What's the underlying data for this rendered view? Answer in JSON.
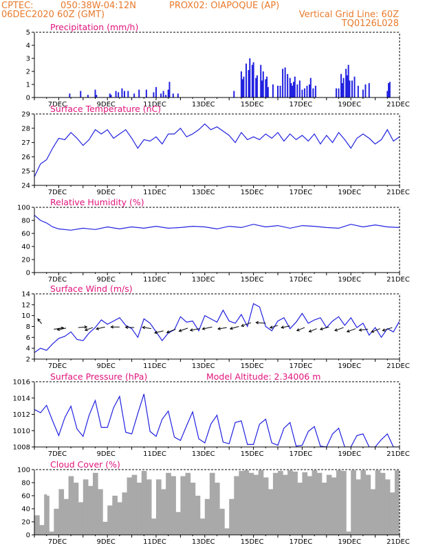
{
  "header": {
    "line1_left": "CPTEC:",
    "line1_coord": "050:38W-04:12N",
    "line1_right": "PROX02: OIAPOQUE (AP)",
    "line2_left": "06DEC2020 60Z (GMT)",
    "line2_right": "Vertical Grid Line: 60Z",
    "line3_right": "TQ0126L028"
  },
  "colors": {
    "header": "#e87a2c",
    "title": "#e0147c",
    "line": "#2020e0",
    "bar": "#2020e0",
    "cloud": "#a9a9a9",
    "wind": "#000000"
  },
  "x_ticks": [
    "7DEC",
    "9DEC",
    "11DEC",
    "13DEC",
    "15DEC",
    "17DEC",
    "19DEC",
    "21DEC"
  ],
  "chart_data": [
    {
      "id": "precip",
      "type": "bar",
      "title": "Precipitation (mm/h)",
      "ylim": [
        0,
        5
      ],
      "yticks": [
        "0",
        "1",
        "2",
        "3",
        "4",
        "5"
      ],
      "x": [
        7.45,
        7.9,
        8.2,
        8.5,
        8.55,
        9.1,
        9.15,
        9.35,
        9.45,
        9.6,
        9.7,
        9.85,
        10.1,
        10.3,
        10.6,
        10.9,
        11.0,
        11.2,
        11.3,
        11.4,
        11.5,
        11.55,
        11.7,
        11.9,
        14.2,
        14.5,
        14.55,
        14.6,
        14.7,
        14.8,
        14.85,
        14.95,
        15.0,
        15.1,
        15.15,
        15.3,
        15.35,
        15.4,
        15.5,
        15.55,
        15.6,
        15.8,
        16.0,
        16.1,
        16.2,
        16.3,
        16.4,
        16.5,
        16.55,
        16.6,
        16.65,
        16.7,
        16.8,
        16.9,
        17.0,
        17.1,
        17.2,
        17.3,
        17.35,
        17.45,
        17.55,
        18.4,
        18.5,
        18.6,
        18.65,
        18.7,
        18.8,
        18.85,
        18.9,
        18.95,
        19.05,
        19.15,
        19.3,
        19.5,
        19.6,
        19.75,
        20.5,
        20.55,
        20.6
      ],
      "values": [
        0.3,
        0.5,
        0.2,
        0.6,
        0.2,
        0.3,
        0.2,
        0.5,
        0.4,
        0.7,
        0.5,
        0.5,
        0.3,
        0.6,
        0.6,
        0.4,
        0.8,
        0.3,
        0.5,
        0.2,
        0.6,
        1.2,
        0.3,
        0.3,
        0.5,
        2.0,
        1.4,
        1.6,
        2.6,
        2.1,
        3.0,
        2.5,
        2.7,
        1.5,
        1.7,
        2.5,
        1.3,
        2.0,
        1.4,
        1.6,
        0.8,
        1.0,
        0.9,
        0.9,
        2.2,
        2.3,
        1.8,
        1.5,
        1.1,
        0.9,
        1.2,
        1.6,
        1.0,
        1.3,
        0.6,
        0.7,
        0.9,
        1.0,
        1.5,
        0.7,
        0.9,
        0.7,
        0.7,
        1.8,
        1.1,
        1.5,
        2.2,
        1.7,
        2.5,
        1.3,
        1.3,
        1.6,
        0.9,
        0.6,
        1.0,
        1.1,
        0.5,
        1.1,
        1.2
      ]
    },
    {
      "id": "temp",
      "type": "line",
      "title": "Surface Temperature (nC)",
      "ylim": [
        24,
        29
      ],
      "yticks": [
        "24",
        "25",
        "26",
        "27",
        "28",
        "29"
      ],
      "x": [
        6.0,
        6.25,
        6.5,
        6.75,
        7.0,
        7.25,
        7.5,
        7.75,
        8.0,
        8.25,
        8.5,
        8.75,
        9.0,
        9.25,
        9.5,
        9.75,
        10.0,
        10.25,
        10.5,
        10.75,
        11.0,
        11.25,
        11.5,
        11.75,
        12.0,
        12.25,
        12.5,
        12.75,
        13.0,
        13.25,
        13.5,
        13.75,
        14.0,
        14.25,
        14.5,
        14.75,
        15.0,
        15.25,
        15.5,
        15.75,
        16.0,
        16.25,
        16.5,
        16.75,
        17.0,
        17.25,
        17.5,
        17.75,
        18.0,
        18.25,
        18.5,
        18.75,
        19.0,
        19.25,
        19.5,
        19.75,
        20.0,
        20.25,
        20.5,
        20.75,
        21.0
      ],
      "values": [
        24.6,
        25.5,
        25.8,
        26.6,
        27.3,
        27.2,
        27.7,
        27.3,
        26.8,
        27.2,
        27.9,
        27.6,
        27.9,
        27.3,
        27.6,
        27.9,
        27.3,
        26.6,
        27.2,
        27.1,
        27.4,
        26.9,
        27.6,
        27.6,
        28.0,
        27.4,
        27.6,
        27.9,
        28.3,
        27.9,
        28.1,
        27.8,
        27.5,
        27.0,
        27.7,
        27.2,
        27.4,
        27.2,
        27.6,
        27.3,
        27.7,
        27.1,
        27.6,
        27.2,
        27.5,
        27.1,
        27.6,
        26.9,
        27.5,
        27.0,
        27.7,
        27.2,
        26.6,
        27.3,
        27.6,
        27.3,
        26.9,
        27.2,
        27.9,
        27.1,
        27.4
      ]
    },
    {
      "id": "rh",
      "type": "line",
      "title": "Relative Humidity (%)",
      "ylim": [
        0,
        100
      ],
      "yticks": [
        "0",
        "20",
        "40",
        "60",
        "80",
        "100"
      ],
      "x": [
        6.0,
        6.25,
        6.5,
        6.75,
        7.0,
        7.5,
        8.0,
        8.5,
        9.0,
        9.5,
        10.0,
        10.5,
        11.0,
        11.5,
        12.0,
        12.5,
        13.0,
        13.5,
        14.0,
        14.5,
        15.0,
        15.5,
        16.0,
        16.5,
        17.0,
        17.5,
        18.0,
        18.5,
        19.0,
        19.5,
        20.0,
        20.5,
        21.0
      ],
      "values": [
        88,
        80,
        76,
        70,
        67,
        65,
        68,
        66,
        70,
        67,
        70,
        68,
        71,
        68,
        69,
        71,
        70,
        67,
        71,
        69,
        74,
        70,
        72,
        68,
        72,
        71,
        69,
        68,
        74,
        70,
        73,
        70,
        69
      ]
    },
    {
      "id": "wind",
      "type": "line",
      "title": "Surface Wind (m/s)",
      "ylim": [
        2,
        14
      ],
      "yticks": [
        "2",
        "4",
        "6",
        "8",
        "10",
        "12",
        "14"
      ],
      "x": [
        6.0,
        6.25,
        6.5,
        6.75,
        7.0,
        7.25,
        7.5,
        7.75,
        8.0,
        8.25,
        8.5,
        8.75,
        9.0,
        9.25,
        9.5,
        9.75,
        10.0,
        10.25,
        10.5,
        10.75,
        11.0,
        11.25,
        11.5,
        11.75,
        12.0,
        12.25,
        12.5,
        12.75,
        13.0,
        13.25,
        13.5,
        13.75,
        14.0,
        14.25,
        14.5,
        14.75,
        15.0,
        15.25,
        15.5,
        15.75,
        16.0,
        16.25,
        16.5,
        16.75,
        17.0,
        17.25,
        17.5,
        17.75,
        18.0,
        18.25,
        18.5,
        18.75,
        19.0,
        19.25,
        19.5,
        19.75,
        20.0,
        20.25,
        20.5,
        20.75,
        21.0
      ],
      "values": [
        3.2,
        4.0,
        3.6,
        4.8,
        5.8,
        6.2,
        7.0,
        5.6,
        5.4,
        6.8,
        7.8,
        9.2,
        8.4,
        9.0,
        9.6,
        8.2,
        7.6,
        6.0,
        9.4,
        8.6,
        7.0,
        5.4,
        6.8,
        7.4,
        9.8,
        8.8,
        9.0,
        7.2,
        10.0,
        9.4,
        8.8,
        11.0,
        9.0,
        8.6,
        10.2,
        8.0,
        12.2,
        11.6,
        8.0,
        7.2,
        9.0,
        9.6,
        7.6,
        8.8,
        10.4,
        8.6,
        9.2,
        9.6,
        7.8,
        9.0,
        9.8,
        8.2,
        9.6,
        7.8,
        8.6,
        6.4,
        7.8,
        6.0,
        7.6,
        7.0,
        9.0
      ],
      "arrows": [
        {
          "x": 6.3,
          "y": 8.5,
          "dx": -0.4,
          "dy": 1.4
        },
        {
          "x": 6.8,
          "y": 7.5,
          "dx": 1.0,
          "dy": 0.4
        },
        {
          "x": 7.3,
          "y": 7.7,
          "dx": -0.9,
          "dy": -0.5
        },
        {
          "x": 7.8,
          "y": 7.8,
          "dx": 0.9,
          "dy": 0.2
        },
        {
          "x": 8.4,
          "y": 7.8,
          "dx": -0.8,
          "dy": -0.8
        },
        {
          "x": 8.9,
          "y": 7.9,
          "dx": -0.9,
          "dy": -0.6
        },
        {
          "x": 9.5,
          "y": 7.9,
          "dx": -0.9,
          "dy": 0.0
        },
        {
          "x": 10.1,
          "y": 7.8,
          "dx": -0.9,
          "dy": 0.1
        },
        {
          "x": 10.8,
          "y": 7.6,
          "dx": -0.9,
          "dy": 0.4
        },
        {
          "x": 11.3,
          "y": 7.2,
          "dx": -0.9,
          "dy": -0.6
        },
        {
          "x": 11.8,
          "y": 7.5,
          "dx": -0.9,
          "dy": -1.0
        },
        {
          "x": 12.3,
          "y": 7.7,
          "dx": -0.9,
          "dy": -0.9
        },
        {
          "x": 12.8,
          "y": 7.6,
          "dx": -1.0,
          "dy": -0.5
        },
        {
          "x": 13.3,
          "y": 7.9,
          "dx": -1.0,
          "dy": -0.6
        },
        {
          "x": 13.9,
          "y": 7.8,
          "dx": -0.9,
          "dy": -0.4
        },
        {
          "x": 14.4,
          "y": 8.0,
          "dx": -0.9,
          "dy": -0.7
        },
        {
          "x": 14.9,
          "y": 8.7,
          "dx": -1.0,
          "dy": -1.0
        },
        {
          "x": 15.5,
          "y": 8.6,
          "dx": -1.0,
          "dy": 0.2
        },
        {
          "x": 16.0,
          "y": 8.2,
          "dx": -0.8,
          "dy": -0.7
        },
        {
          "x": 16.5,
          "y": 8.1,
          "dx": -0.9,
          "dy": -0.5
        },
        {
          "x": 17.1,
          "y": 7.8,
          "dx": -0.8,
          "dy": -0.9
        },
        {
          "x": 17.6,
          "y": 7.6,
          "dx": -0.8,
          "dy": -0.9
        },
        {
          "x": 18.1,
          "y": 7.9,
          "dx": -0.9,
          "dy": -0.7
        },
        {
          "x": 18.7,
          "y": 7.8,
          "dx": -0.9,
          "dy": -0.9
        },
        {
          "x": 19.2,
          "y": 7.6,
          "dx": -0.9,
          "dy": -0.9
        },
        {
          "x": 19.7,
          "y": 7.5,
          "dx": -0.9,
          "dy": -0.3
        },
        {
          "x": 20.2,
          "y": 7.6,
          "dx": -0.9,
          "dy": -1.0
        },
        {
          "x": 20.7,
          "y": 7.8,
          "dx": -1.0,
          "dy": -0.9
        }
      ]
    },
    {
      "id": "pres",
      "type": "line",
      "title": "Surface Pressure (hPa)",
      "annotation": "Model Altitude: 2.34006 m",
      "ylim": [
        1008,
        1016
      ],
      "yticks": [
        "1008",
        "1010",
        "1012",
        "1014",
        "1016"
      ],
      "x": [
        6.0,
        6.25,
        6.5,
        6.75,
        7.0,
        7.25,
        7.5,
        7.75,
        8.0,
        8.25,
        8.5,
        8.75,
        9.0,
        9.25,
        9.5,
        9.75,
        10.0,
        10.25,
        10.5,
        10.75,
        11.0,
        11.25,
        11.5,
        11.75,
        12.0,
        12.25,
        12.5,
        12.75,
        13.0,
        13.25,
        13.5,
        13.75,
        14.0,
        14.25,
        14.5,
        14.75,
        15.0,
        15.25,
        15.5,
        15.75,
        16.0,
        16.25,
        16.5,
        16.75,
        17.0,
        17.25,
        17.5,
        17.75,
        18.0,
        18.25,
        18.5,
        18.75,
        19.0,
        19.25,
        19.5,
        19.75,
        20.0,
        20.25,
        20.5,
        20.75,
        21.0
      ],
      "values": [
        1012.6,
        1012.2,
        1013.1,
        1011.2,
        1009.4,
        1011.6,
        1013.0,
        1010.2,
        1009.3,
        1011.9,
        1013.7,
        1010.4,
        1010.4,
        1012.8,
        1014.2,
        1009.8,
        1009.6,
        1012.1,
        1014.5,
        1009.9,
        1009.3,
        1011.4,
        1012.4,
        1009.2,
        1008.8,
        1010.6,
        1012.3,
        1009.0,
        1008.5,
        1010.8,
        1011.9,
        1008.6,
        1008.4,
        1011.0,
        1011.2,
        1008.3,
        1008.3,
        1010.8,
        1011.4,
        1008.5,
        1008.2,
        1010.3,
        1011.0,
        1008.1,
        1008.2,
        1009.9,
        1010.5,
        1008.1,
        1008.0,
        1009.6,
        1010.3,
        1008.0,
        1008.0,
        1009.4,
        1009.6,
        1008.0,
        1008.0,
        1008.9,
        1009.6,
        1008.0,
        1008.0
      ]
    },
    {
      "id": "cloud",
      "type": "area",
      "title": "Cloud Cover (%)",
      "ylim": [
        0,
        100
      ],
      "yticks": [
        "0",
        "20",
        "40",
        "60",
        "80",
        "100"
      ],
      "x": [
        6.0,
        6.2,
        6.4,
        6.5,
        6.6,
        6.8,
        7.0,
        7.2,
        7.4,
        7.6,
        7.8,
        8.0,
        8.2,
        8.4,
        8.6,
        8.8,
        9.0,
        9.2,
        9.4,
        9.6,
        9.8,
        10.0,
        10.2,
        10.4,
        10.6,
        10.8,
        11.0,
        11.2,
        11.4,
        11.6,
        11.8,
        12.0,
        12.2,
        12.4,
        12.6,
        12.8,
        13.0,
        13.2,
        13.4,
        13.6,
        13.8,
        14.0,
        14.2,
        14.4,
        14.6,
        14.8,
        15.0,
        15.2,
        15.4,
        15.6,
        15.8,
        16.0,
        16.2,
        16.4,
        16.6,
        16.8,
        17.0,
        17.2,
        17.4,
        17.6,
        17.8,
        18.0,
        18.2,
        18.4,
        18.6,
        18.8,
        19.0,
        19.2,
        19.4,
        19.6,
        19.8,
        20.0,
        20.2,
        20.4,
        20.6,
        20.8,
        21.0
      ],
      "values": [
        30,
        15,
        62,
        60,
        5,
        40,
        70,
        55,
        90,
        80,
        50,
        85,
        75,
        95,
        70,
        20,
        45,
        60,
        50,
        65,
        88,
        92,
        80,
        98,
        85,
        25,
        85,
        70,
        95,
        90,
        35,
        90,
        95,
        80,
        60,
        25,
        55,
        95,
        80,
        40,
        10,
        55,
        90,
        98,
        99,
        95,
        92,
        99,
        88,
        70,
        95,
        98,
        92,
        99,
        97,
        80,
        96,
        90,
        99,
        95,
        80,
        92,
        88,
        99,
        98,
        5,
        99,
        85,
        99,
        92,
        70,
        99,
        95,
        85,
        65,
        99,
        96
      ]
    }
  ]
}
